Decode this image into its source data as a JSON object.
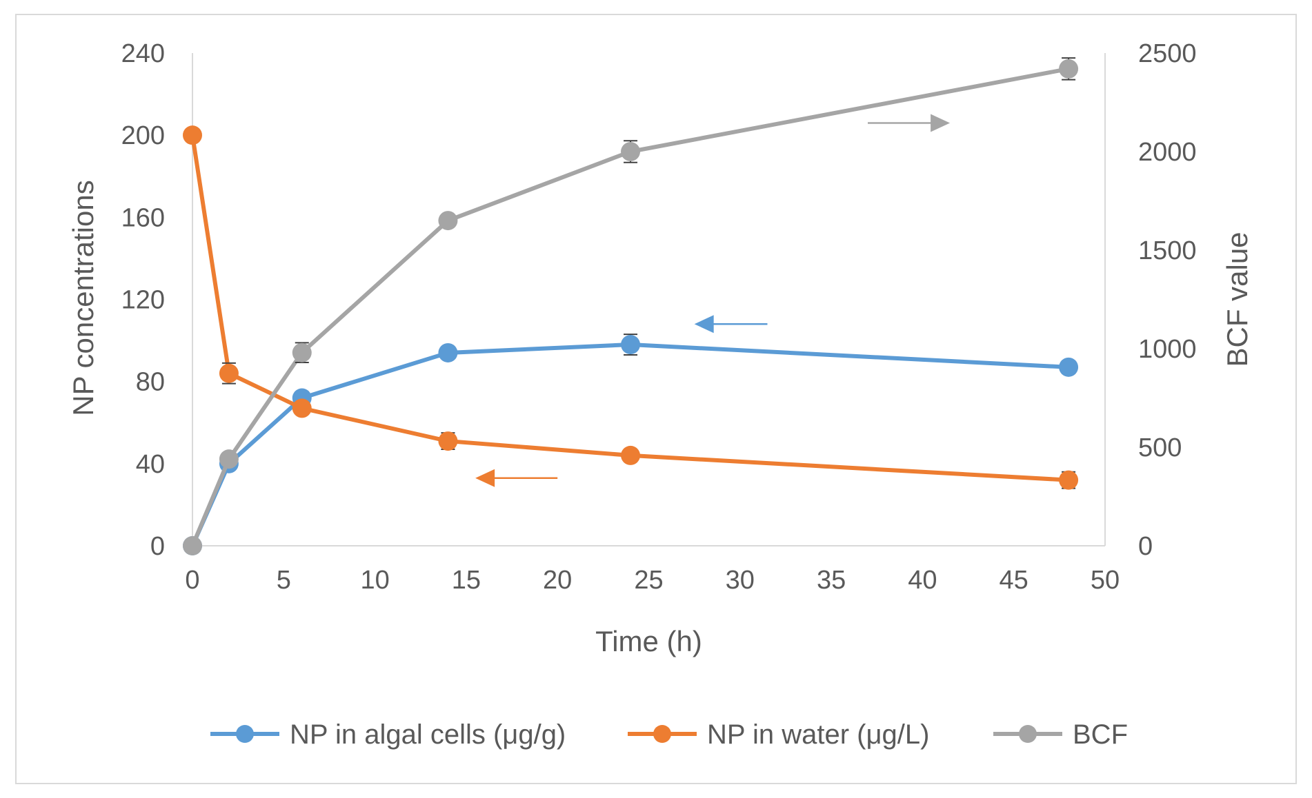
{
  "chart_data": {
    "type": "line",
    "title": "",
    "xlabel": "Time (h)",
    "ylabel": "NP concentrations",
    "y2label": "BCF value",
    "xlim": [
      0,
      50
    ],
    "ylim": [
      0,
      240
    ],
    "y2lim": [
      0,
      2500
    ],
    "xticks": [
      0,
      5,
      10,
      15,
      20,
      25,
      30,
      35,
      40,
      45,
      50
    ],
    "yticks": [
      0,
      40,
      80,
      120,
      160,
      200,
      240
    ],
    "y2ticks": [
      0,
      500,
      1000,
      1500,
      2000,
      2500
    ],
    "grid": false,
    "legend_position": "bottom",
    "x": [
      0,
      2,
      6,
      14,
      24,
      48
    ],
    "series": [
      {
        "name": "NP in algal cells (μg/g)",
        "axis": "left",
        "color": "#5B9BD5",
        "values": [
          0,
          40,
          72,
          94,
          98,
          87
        ],
        "errors": [
          0,
          2,
          3,
          2,
          5,
          3
        ]
      },
      {
        "name": "NP in water (μg/L)",
        "axis": "left",
        "color": "#ED7D31",
        "values": [
          200,
          84,
          67,
          51,
          44,
          32
        ],
        "errors": [
          0,
          5,
          2,
          4,
          2,
          4
        ]
      },
      {
        "name": "BCF",
        "axis": "right",
        "color": "#A5A5A5",
        "values": [
          0,
          440,
          980,
          1650,
          2000,
          2420
        ],
        "errors": [
          0,
          30,
          50,
          30,
          55,
          55
        ]
      }
    ],
    "annotations": [
      {
        "type": "arrow",
        "series": "BCF",
        "direction": "right",
        "color": "#A5A5A5",
        "x_data": [
          37,
          41.5
        ],
        "y": 2145,
        "axis": "right"
      },
      {
        "type": "arrow",
        "series": "NP in algal cells (μg/g)",
        "direction": "left",
        "color": "#5B9BD5",
        "x_data": [
          27.5,
          31.5
        ],
        "y": 108,
        "axis": "left"
      },
      {
        "type": "arrow",
        "series": "NP in water (μg/L)",
        "direction": "left",
        "color": "#ED7D31",
        "x_data": [
          15.5,
          20
        ],
        "y": 33,
        "axis": "left"
      }
    ]
  }
}
